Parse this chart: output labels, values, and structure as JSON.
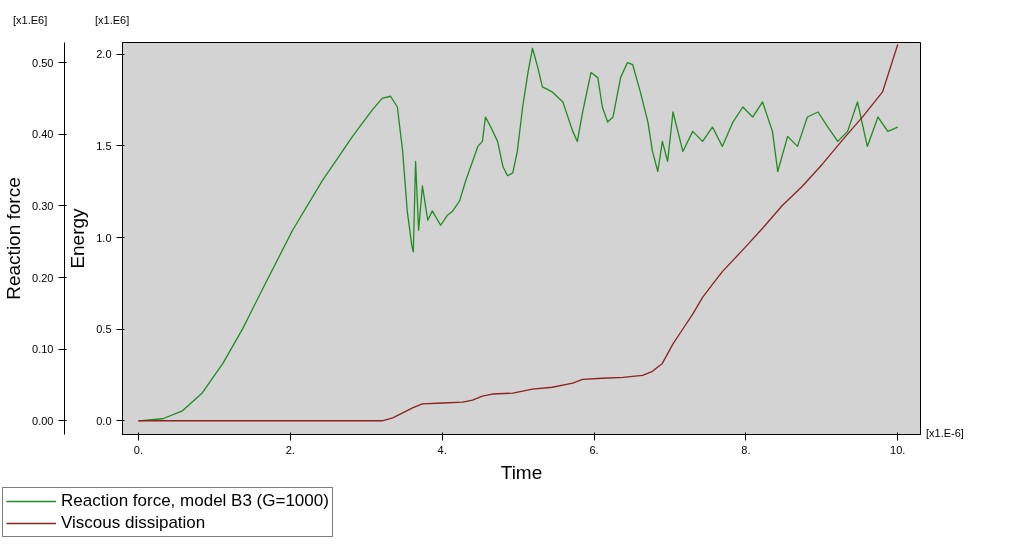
{
  "chart_data": {
    "type": "line",
    "xlabel": "Time",
    "ylabel": "Energy",
    "y2label": "Reaction force",
    "annotations": [
      "[x1.E6]",
      "[x1.E6]",
      "[x1.E-6]"
    ],
    "xlim": [
      -0.21,
      10.3
    ],
    "ylim": [
      -0.075,
      2.065
    ],
    "y2lim": [
      -0.019,
      0.528
    ],
    "xticks": [
      {
        "value": 0,
        "label": "0."
      },
      {
        "value": 2,
        "label": "2."
      },
      {
        "value": 4,
        "label": "4."
      },
      {
        "value": 6,
        "label": "6."
      },
      {
        "value": 8,
        "label": "8."
      },
      {
        "value": 10,
        "label": "10."
      }
    ],
    "yticks": [
      {
        "value": 0,
        "label": "0.0"
      },
      {
        "value": 0.5,
        "label": "0.5"
      },
      {
        "value": 1,
        "label": "1.0"
      },
      {
        "value": 1.5,
        "label": "1.5"
      },
      {
        "value": 2,
        "label": "2.0"
      }
    ],
    "y2ticks": [
      {
        "value": 0,
        "label": "0.00"
      },
      {
        "value": 0.1,
        "label": "0.10"
      },
      {
        "value": 0.2,
        "label": "0.20"
      },
      {
        "value": 0.3,
        "label": "0.30"
      },
      {
        "value": 0.4,
        "label": "0.40"
      },
      {
        "value": 0.5,
        "label": "0.50"
      }
    ],
    "grid": false,
    "legend": "bottom",
    "line_style": "solid",
    "series": [
      {
        "name": "Reaction force, model B3 (G=1000)",
        "color": "#1f8c1f",
        "axis": "y2",
        "x": [
          0,
          0.32,
          0.58,
          0.84,
          1.11,
          1.37,
          1.63,
          2.03,
          2.42,
          2.82,
          3.08,
          3.21,
          3.32,
          3.41,
          3.48,
          3.54,
          3.6,
          3.62,
          3.65,
          3.69,
          3.74,
          3.81,
          3.87,
          3.98,
          4.07,
          4.14,
          4.23,
          4.31,
          4.4,
          4.47,
          4.53,
          4.57,
          4.64,
          4.73,
          4.8,
          4.86,
          4.93,
          4.99,
          5.06,
          5.13,
          5.19,
          5.26,
          5.32,
          5.45,
          5.59,
          5.72,
          5.78,
          5.85,
          5.96,
          6.05,
          6.11,
          6.18,
          6.25,
          6.35,
          6.44,
          6.51,
          6.61,
          6.71,
          6.77,
          6.84,
          6.9,
          6.97,
          7.04,
          7.17,
          7.3,
          7.43,
          7.56,
          7.69,
          7.83,
          7.96,
          8.09,
          8.22,
          8.35,
          8.42,
          8.55,
          8.68,
          8.81,
          8.95,
          9.08,
          9.21,
          9.34,
          9.47,
          9.6,
          9.74,
          9.87,
          10.0
        ],
        "values": [
          0,
          0.003,
          0.014,
          0.039,
          0.08,
          0.128,
          0.183,
          0.266,
          0.335,
          0.397,
          0.434,
          0.45,
          0.453,
          0.438,
          0.376,
          0.293,
          0.245,
          0.236,
          0.362,
          0.266,
          0.328,
          0.28,
          0.293,
          0.273,
          0.287,
          0.293,
          0.307,
          0.335,
          0.362,
          0.383,
          0.39,
          0.424,
          0.41,
          0.39,
          0.355,
          0.342,
          0.346,
          0.376,
          0.438,
          0.486,
          0.52,
          0.493,
          0.466,
          0.459,
          0.445,
          0.404,
          0.39,
          0.431,
          0.486,
          0.479,
          0.438,
          0.417,
          0.424,
          0.479,
          0.5,
          0.497,
          0.459,
          0.417,
          0.376,
          0.348,
          0.39,
          0.362,
          0.431,
          0.376,
          0.404,
          0.39,
          0.41,
          0.383,
          0.417,
          0.438,
          0.424,
          0.445,
          0.404,
          0.348,
          0.397,
          0.383,
          0.424,
          0.431,
          0.41,
          0.39,
          0.404,
          0.445,
          0.383,
          0.424,
          0.404,
          0.41
        ]
      },
      {
        "name": "Viscous dissipation",
        "color": "#8b2323",
        "x": [
          0,
          3.21,
          3.35,
          3.48,
          3.61,
          3.74,
          4.01,
          4.27,
          4.4,
          4.53,
          4.66,
          4.93,
          5.06,
          5.19,
          5.45,
          5.72,
          5.85,
          6.11,
          6.38,
          6.64,
          6.77,
          6.9,
          7.04,
          7.17,
          7.3,
          7.43,
          7.56,
          7.69,
          7.96,
          8.22,
          8.48,
          8.75,
          9.01,
          9.28,
          9.54,
          9.8,
          10.0
        ],
        "values": [
          0,
          0,
          0.016,
          0.043,
          0.07,
          0.092,
          0.097,
          0.102,
          0.113,
          0.135,
          0.146,
          0.151,
          0.162,
          0.173,
          0.183,
          0.205,
          0.226,
          0.232,
          0.237,
          0.248,
          0.27,
          0.313,
          0.42,
          0.501,
          0.582,
          0.674,
          0.744,
          0.814,
          0.933,
          1.051,
          1.175,
          1.283,
          1.402,
          1.536,
          1.66,
          1.795,
          2.054
        ]
      }
    ]
  }
}
